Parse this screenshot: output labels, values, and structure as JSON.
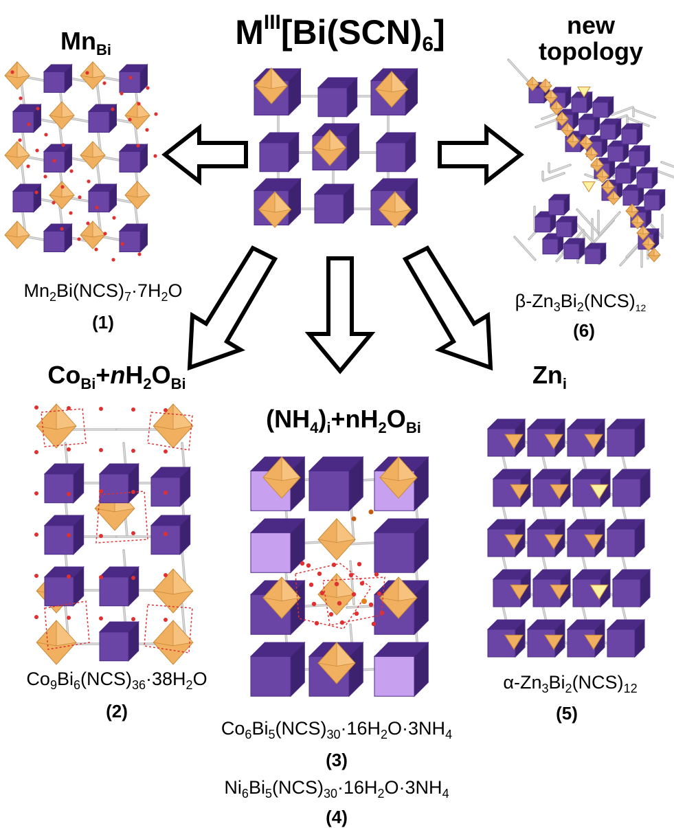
{
  "center": {
    "title_main": "M",
    "title_sup": "III",
    "title_mid": "[Bi(SCN)",
    "title_sub": "6",
    "title_end": "]"
  },
  "p1": {
    "title_main": "Mn",
    "title_sub": "Bi",
    "formula": [
      "Mn",
      "2",
      "Bi(NCS)",
      "7",
      "·7H",
      "2",
      "O"
    ],
    "number": "(1)"
  },
  "p6": {
    "title_line1": "new",
    "title_line2": "topology",
    "formula": [
      "β-Zn",
      "3",
      "Bi",
      "2",
      "(NCS)",
      "12"
    ],
    "number": "(6)"
  },
  "p2": {
    "title": [
      "Co",
      "Bi",
      "+",
      "n",
      "H",
      "2",
      "O",
      "Bi"
    ],
    "formula": [
      "Co",
      "9",
      "Bi",
      "6",
      "(NCS)",
      "36",
      "·38H",
      "2",
      "O"
    ],
    "number": "(2)"
  },
  "p3": {
    "title": [
      "(NH",
      "4",
      ")",
      "i",
      "+nH",
      "2",
      "O",
      "Bi"
    ],
    "formula3": [
      "Co",
      "6",
      "Bi",
      "5",
      "(NCS)",
      "30",
      "·16H",
      "2",
      "O·3NH",
      "4"
    ],
    "number3": "(3)",
    "formula4": [
      "Ni",
      "6",
      "Bi",
      "5",
      "(NCS)",
      "30",
      "·16H",
      "2",
      "O·3NH",
      "4"
    ],
    "number4": "(4)"
  },
  "p5": {
    "title_main": "Zn",
    "title_sub": "i",
    "formula": [
      "α-Zn",
      "3",
      "Bi",
      "2",
      "(NCS)",
      "12"
    ],
    "number": "(5)"
  },
  "colors": {
    "purple": "#6a45a5",
    "purple_dark": "#4a2a85",
    "lilac": "#c8a0f0",
    "orange": "#f0b060",
    "orange_dark": "#c88a3a",
    "yellow": "#fff2a0",
    "bond": "#b8b8b8",
    "water": "#e03030"
  }
}
